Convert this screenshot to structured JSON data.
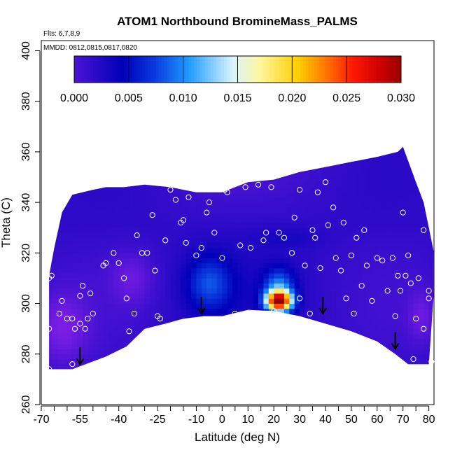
{
  "chart_data": {
    "type": "heatmap",
    "title": "ATOM1 Northbound BromineMass_PALMS",
    "flights_label": "Flts: 6,7,8,9",
    "dates_label": "MMDD: 0812,0815,0817,0820",
    "xlabel": "Latitude (deg N)",
    "ylabel": "Theta (C)",
    "xlim": [
      -70,
      82
    ],
    "ylim": [
      260,
      404
    ],
    "x_tick_labels": [
      "-70",
      "-55",
      "-40",
      "-25",
      "-10",
      "0",
      "10",
      "20",
      "30",
      "40",
      "50",
      "60",
      "70",
      "80"
    ],
    "x_tick_values": [
      -70,
      -55,
      -40,
      -25,
      -10,
      0,
      10,
      20,
      30,
      40,
      50,
      60,
      70,
      80
    ],
    "x_minor_ticks": [
      -65,
      -60,
      -50,
      -45,
      -35,
      -30,
      -20,
      -15,
      -5,
      5,
      15,
      25,
      35,
      45,
      55,
      65,
      75
    ],
    "y_ticks": [
      260,
      280,
      300,
      320,
      340,
      360,
      380,
      400
    ],
    "colorbar": {
      "min": 0.0,
      "max": 0.03,
      "tick_labels": [
        "0.000",
        "0.005",
        "0.010",
        "0.015",
        "0.020",
        "0.025",
        "0.030"
      ],
      "tick_values": [
        0.0,
        0.005,
        0.01,
        0.015,
        0.02,
        0.025,
        0.03
      ],
      "colors": [
        "#7f1fe6",
        "#0000b8",
        "#0a3de0",
        "#1e9bff",
        "#d8f4ff",
        "#fff7a0",
        "#ffd000",
        "#ff7a00",
        "#ff1a00",
        "#d00000",
        "#8b0000"
      ]
    },
    "top_boundary": [
      [
        -67,
        311
      ],
      [
        -65,
        322
      ],
      [
        -62,
        336
      ],
      [
        -58,
        343
      ],
      [
        -50,
        345
      ],
      [
        -45,
        346
      ],
      [
        -38,
        346
      ],
      [
        -30,
        347
      ],
      [
        -20,
        346
      ],
      [
        -10,
        344
      ],
      [
        0,
        344
      ],
      [
        5,
        346
      ],
      [
        10,
        348
      ],
      [
        20,
        349
      ],
      [
        30,
        352
      ],
      [
        40,
        354
      ],
      [
        50,
        356
      ],
      [
        60,
        358
      ],
      [
        68,
        360
      ],
      [
        70,
        362
      ],
      [
        75,
        348
      ],
      [
        78,
        340
      ],
      [
        82,
        320
      ],
      [
        82,
        305
      ]
    ],
    "bottom_boundary": [
      [
        -67,
        274
      ],
      [
        -62,
        274
      ],
      [
        -58,
        274
      ],
      [
        -45,
        279
      ],
      [
        -37,
        283
      ],
      [
        -30,
        290
      ],
      [
        -22,
        292
      ],
      [
        -15,
        294
      ],
      [
        -7,
        295
      ],
      [
        0,
        295
      ],
      [
        10,
        297.5
      ],
      [
        20,
        297
      ],
      [
        30,
        295
      ],
      [
        40,
        292
      ],
      [
        50,
        289
      ],
      [
        60,
        285
      ],
      [
        67,
        280
      ],
      [
        72,
        276
      ],
      [
        80,
        276
      ]
    ],
    "hotspots": [
      {
        "x": -5,
        "y": 308,
        "sx": 9,
        "sy": 11,
        "value": 0.0075
      },
      {
        "x": 22,
        "y": 301,
        "sx": 5,
        "sy": 4,
        "value": 0.028
      },
      {
        "x": 22,
        "y": 307,
        "sx": 6,
        "sy": 7,
        "value": 0.009
      },
      {
        "x": 25,
        "y": 326,
        "sx": 14,
        "sy": 4,
        "value": 0.003
      },
      {
        "x": -62,
        "y": 290,
        "sx": 10,
        "sy": 14,
        "value": -0.002
      },
      {
        "x": -35,
        "y": 310,
        "sx": 8,
        "sy": 10,
        "value": -0.001
      },
      {
        "x": 77,
        "y": 295,
        "sx": 5,
        "sy": 10,
        "value": -0.001
      }
    ],
    "base_value": 0.0018,
    "points": [
      [
        -67,
        274
      ],
      [
        -61,
        272
      ],
      [
        -58,
        276
      ],
      [
        -62,
        301
      ],
      [
        -66,
        311
      ],
      [
        -67,
        310
      ],
      [
        -67,
        290
      ],
      [
        -63,
        296
      ],
      [
        -60,
        294
      ],
      [
        -58,
        294
      ],
      [
        -57,
        290
      ],
      [
        -55,
        303
      ],
      [
        -54,
        307
      ],
      [
        -55,
        292
      ],
      [
        -53,
        290
      ],
      [
        -52,
        294
      ],
      [
        -51,
        304
      ],
      [
        -50,
        296
      ],
      [
        -48,
        276
      ],
      [
        -46,
        315
      ],
      [
        -45,
        316
      ],
      [
        -42,
        320
      ],
      [
        -40,
        316
      ],
      [
        -38,
        310
      ],
      [
        -37,
        302
      ],
      [
        -36,
        289
      ],
      [
        -34,
        296
      ],
      [
        -33,
        327
      ],
      [
        -31,
        320
      ],
      [
        -29,
        320
      ],
      [
        -27,
        335
      ],
      [
        -26,
        313
      ],
      [
        -25,
        295
      ],
      [
        -24,
        294
      ],
      [
        -22,
        325
      ],
      [
        -20,
        345
      ],
      [
        -18,
        341
      ],
      [
        -16,
        332
      ],
      [
        -15,
        333
      ],
      [
        -14,
        324
      ],
      [
        -13,
        342
      ],
      [
        -10,
        319
      ],
      [
        -9,
        346
      ],
      [
        -8,
        322
      ],
      [
        -6,
        336
      ],
      [
        -5,
        340
      ],
      [
        -3,
        328
      ],
      [
        0,
        318
      ],
      [
        1,
        345
      ],
      [
        2,
        344
      ],
      [
        5,
        296
      ],
      [
        7,
        323
      ],
      [
        9,
        346
      ],
      [
        11,
        322
      ],
      [
        14,
        347
      ],
      [
        16,
        325
      ],
      [
        17,
        328
      ],
      [
        19,
        346
      ],
      [
        20,
        297
      ],
      [
        22,
        328
      ],
      [
        24,
        326
      ],
      [
        27,
        320
      ],
      [
        28,
        334
      ],
      [
        30,
        345
      ],
      [
        30,
        302
      ],
      [
        32,
        315
      ],
      [
        34,
        296
      ],
      [
        35,
        329
      ],
      [
        36,
        326
      ],
      [
        37,
        344
      ],
      [
        38,
        314
      ],
      [
        40,
        348
      ],
      [
        41,
        331
      ],
      [
        43,
        338
      ],
      [
        44,
        318
      ],
      [
        46,
        313
      ],
      [
        47,
        332
      ],
      [
        48,
        302
      ],
      [
        50,
        319
      ],
      [
        51,
        296
      ],
      [
        52,
        326
      ],
      [
        54,
        307
      ],
      [
        55,
        329
      ],
      [
        56,
        315
      ],
      [
        58,
        301
      ],
      [
        60,
        318
      ],
      [
        62,
        317
      ],
      [
        64,
        305
      ],
      [
        66,
        318
      ],
      [
        67,
        295
      ],
      [
        68,
        311
      ],
      [
        69,
        305
      ],
      [
        70,
        336
      ],
      [
        71,
        311
      ],
      [
        72,
        319
      ],
      [
        73,
        308
      ],
      [
        74,
        278
      ],
      [
        75,
        294
      ],
      [
        76,
        310
      ],
      [
        78,
        329
      ],
      [
        79,
        345
      ],
      [
        80,
        305
      ],
      [
        81,
        277
      ],
      [
        80,
        302
      ],
      [
        78,
        290
      ]
    ],
    "arrows": [
      [
        -55,
        276
      ],
      [
        -8,
        296
      ],
      [
        39,
        296
      ],
      [
        67,
        282
      ]
    ]
  }
}
